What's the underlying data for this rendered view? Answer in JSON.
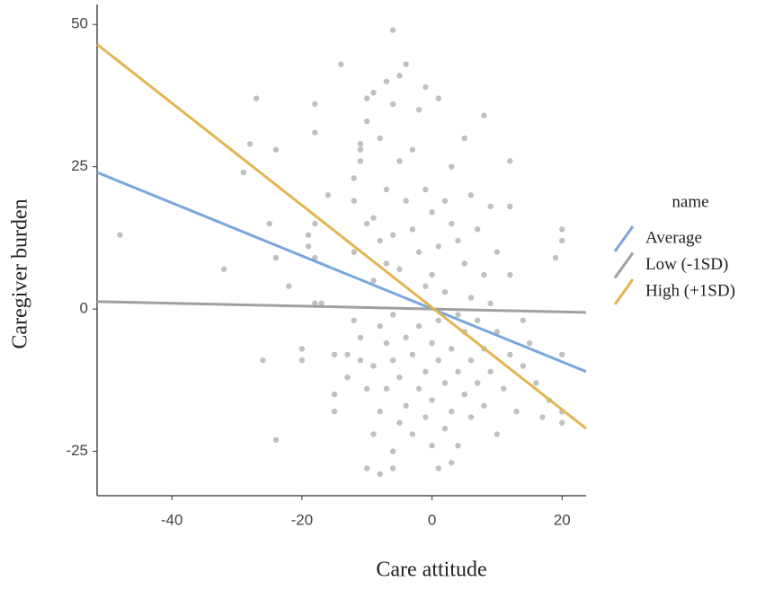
{
  "chart_data": {
    "type": "scatter",
    "x_label": "Care attitude",
    "y_label": "Caregiver burden",
    "legend_title": "name",
    "xlim": [
      -51.5,
      23.7
    ],
    "ylim": [
      -32.8,
      53.5
    ],
    "xticks": [
      -40,
      -20,
      0,
      20
    ],
    "yticks": [
      -25,
      0,
      25,
      50
    ],
    "points_color": "#8c8c8c",
    "points": {
      "x": [
        -48,
        -32,
        -29,
        -28,
        -27,
        -26,
        -25,
        -24,
        -24,
        -24,
        -22,
        -20,
        -20,
        -19,
        -19,
        -18,
        -18,
        -18,
        -18,
        -18,
        -17,
        -16,
        -15,
        -15,
        -15,
        -14,
        -13,
        -13,
        -12,
        -12,
        -12,
        -12,
        -11,
        -11,
        -11,
        -11,
        -11,
        -10,
        -10,
        -10,
        -10,
        -10,
        -9,
        -9,
        -9,
        -9,
        -9,
        -8,
        -8,
        -8,
        -8,
        -8,
        -7,
        -7,
        -7,
        -7,
        -7,
        -6,
        -6,
        -6,
        -6,
        -6,
        -6,
        -6,
        -5,
        -5,
        -5,
        -5,
        -5,
        -4,
        -4,
        -4,
        -4,
        -3,
        -3,
        -3,
        -3,
        -2,
        -2,
        -2,
        -2,
        -1,
        -1,
        -1,
        -1,
        -1,
        0,
        0,
        0,
        0,
        0,
        1,
        1,
        1,
        1,
        1,
        2,
        2,
        2,
        2,
        3,
        3,
        3,
        3,
        3,
        4,
        4,
        4,
        4,
        5,
        5,
        5,
        5,
        6,
        6,
        6,
        6,
        7,
        7,
        7,
        8,
        8,
        8,
        8,
        9,
        9,
        9,
        10,
        10,
        10,
        11,
        12,
        12,
        12,
        12,
        13,
        14,
        14,
        15,
        16,
        17,
        18,
        19,
        20,
        20,
        20,
        20,
        20
      ],
      "y": [
        13,
        7,
        24,
        29,
        37,
        -9,
        15,
        28,
        9,
        -23,
        4,
        -7,
        -9,
        13,
        11,
        36,
        31,
        15,
        9,
        1,
        1,
        20,
        -8,
        -15,
        -18,
        43,
        -8,
        -12,
        23,
        19,
        10,
        -2,
        29,
        28,
        26,
        -5,
        -9,
        37,
        33,
        15,
        -14,
        -28,
        38,
        16,
        5,
        -10,
        -22,
        30,
        12,
        -3,
        -18,
        -29,
        40,
        21,
        8,
        -6,
        -14,
        49,
        36,
        13,
        -1,
        -9,
        -25,
        -28,
        41,
        26,
        7,
        -12,
        -20,
        43,
        19,
        -5,
        -17,
        28,
        14,
        -8,
        -22,
        35,
        10,
        -3,
        -14,
        39,
        21,
        4,
        -11,
        -19,
        17,
        6,
        -6,
        -16,
        -24,
        37,
        11,
        -2,
        -9,
        -28,
        19,
        3,
        -13,
        -21,
        25,
        15,
        -7,
        -18,
        -27,
        12,
        -1,
        -11,
        -24,
        30,
        8,
        -4,
        -15,
        20,
        2,
        -9,
        -19,
        14,
        -2,
        -13,
        34,
        6,
        -7,
        -17,
        18,
        1,
        -11,
        10,
        -4,
        -22,
        -14,
        26,
        18,
        6,
        -8,
        -18,
        -2,
        -10,
        -6,
        -13,
        -19,
        -16,
        9,
        14,
        12,
        -8,
        -18,
        -20
      ]
    },
    "series": [
      {
        "name": "Average",
        "color": "#7aa6e0",
        "x": [
          -51.5,
          23.7
        ],
        "values": [
          24,
          -11
        ]
      },
      {
        "name": "Low (-1SD)",
        "color": "#a0a0a0",
        "x": [
          -51.5,
          23.7
        ],
        "values": [
          1.3,
          -0.6
        ]
      },
      {
        "name": "High (+1SD)",
        "color": "#e3b450",
        "x": [
          -51.5,
          23.7
        ],
        "values": [
          46.5,
          -21
        ]
      }
    ]
  }
}
